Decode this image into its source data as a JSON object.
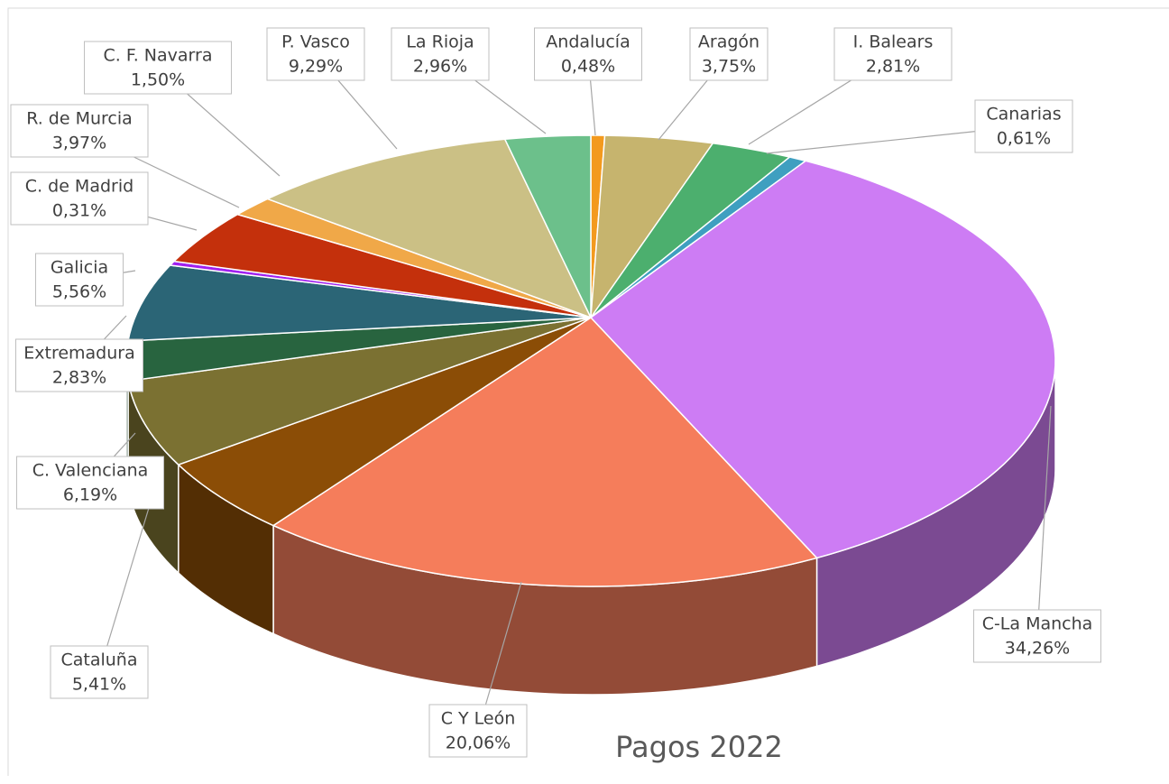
{
  "chart_data": {
    "type": "pie",
    "title": "Pagos 2022",
    "categories": [
      "Andalucía",
      "Aragón",
      "I. Balears",
      "Canarias",
      "C-La Mancha",
      "C Y León",
      "Cataluña",
      "C. Valenciana",
      "Extremadura",
      "Galicia",
      "C. de Madrid",
      "R. de Murcia",
      "C. F. Navarra",
      "P. Vasco",
      "La Rioja"
    ],
    "values": [
      0.48,
      3.75,
      2.81,
      0.61,
      34.26,
      20.06,
      5.41,
      6.19,
      2.83,
      5.56,
      0.31,
      3.97,
      1.5,
      9.29,
      2.96
    ],
    "value_labels": [
      "0,48%",
      "3,75%",
      "2,81%",
      "0,61%",
      "34,26%",
      "20,06%",
      "5,41%",
      "6,19%",
      "2,83%",
      "5,56%",
      "0,31%",
      "3,97%",
      "1,50%",
      "9,29%",
      "2,96%"
    ],
    "colors": [
      "#f39a1e",
      "#c6b46e",
      "#4caf6e",
      "#3f9fc0",
      "#cd7cf4",
      "#f57d5b",
      "#8b4d06",
      "#7b7132",
      "#28643f",
      "#2b6576",
      "#a020f0",
      "#c4300c",
      "#f0a848",
      "#cbc085",
      "#6cc08b"
    ]
  }
}
